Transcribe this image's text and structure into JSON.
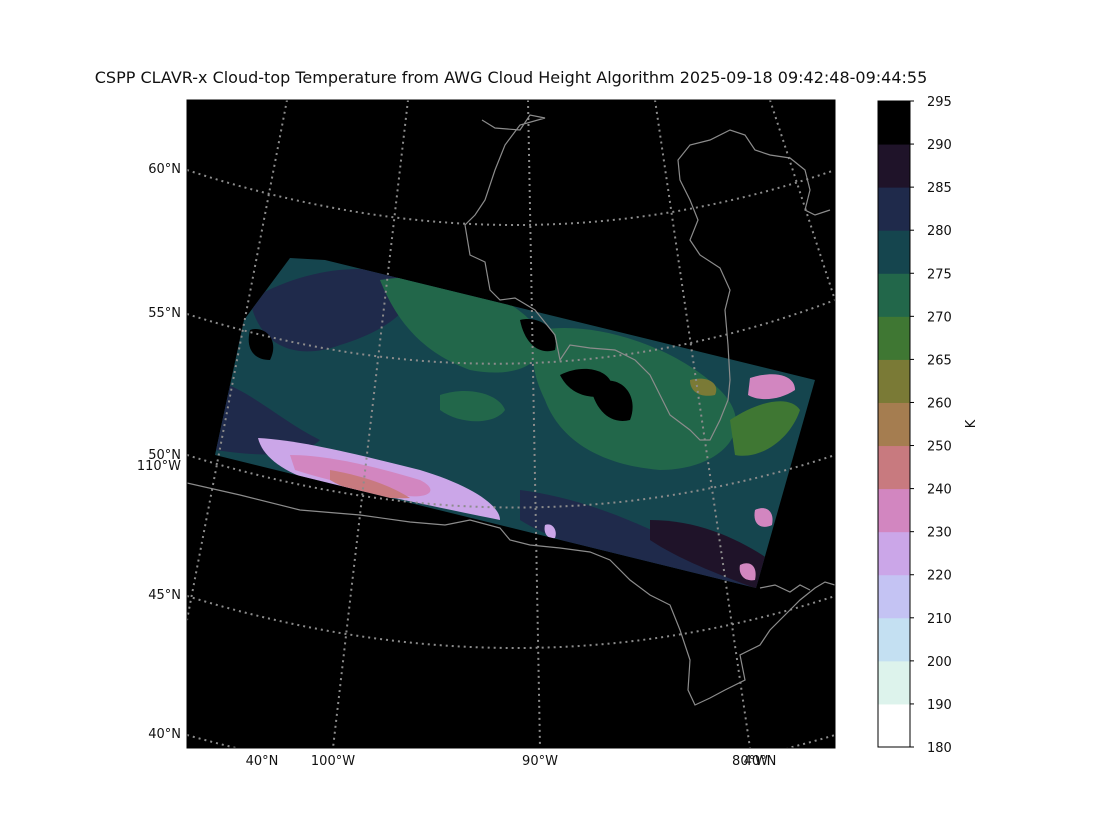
{
  "title": "CSPP CLAVR-x Cloud-top Temperature from AWG Cloud Height Algorithm 2025-09-18 09:42:48-09:44:55",
  "lat_labels": [
    "60°N",
    "55°N",
    "50°N",
    "45°N",
    "40°N"
  ],
  "lon_left_labels": [
    "110°W"
  ],
  "bottom_labels": [
    "40°N",
    "100°W",
    "90°W",
    "80°W",
    "40°N"
  ],
  "colorbar": {
    "ticks": [
      "295",
      "290",
      "285",
      "280",
      "275",
      "270",
      "265",
      "260",
      "250",
      "240",
      "230",
      "220",
      "210",
      "200",
      "190",
      "180"
    ],
    "unit": "K",
    "colors": [
      "#ffffff",
      "#ddf3ec",
      "#c4e0f2",
      "#c4c3f3",
      "#cba6e8",
      "#d286c0",
      "#c87a7f",
      "#a57d50",
      "#7a7a36",
      "#3f7733",
      "#22674a",
      "#15454e",
      "#1f2a4b",
      "#1f1329",
      "#000000"
    ]
  },
  "colors": {
    "background": "#000000",
    "coast": "#8c8c8c",
    "grid": "#8c8c8c"
  }
}
